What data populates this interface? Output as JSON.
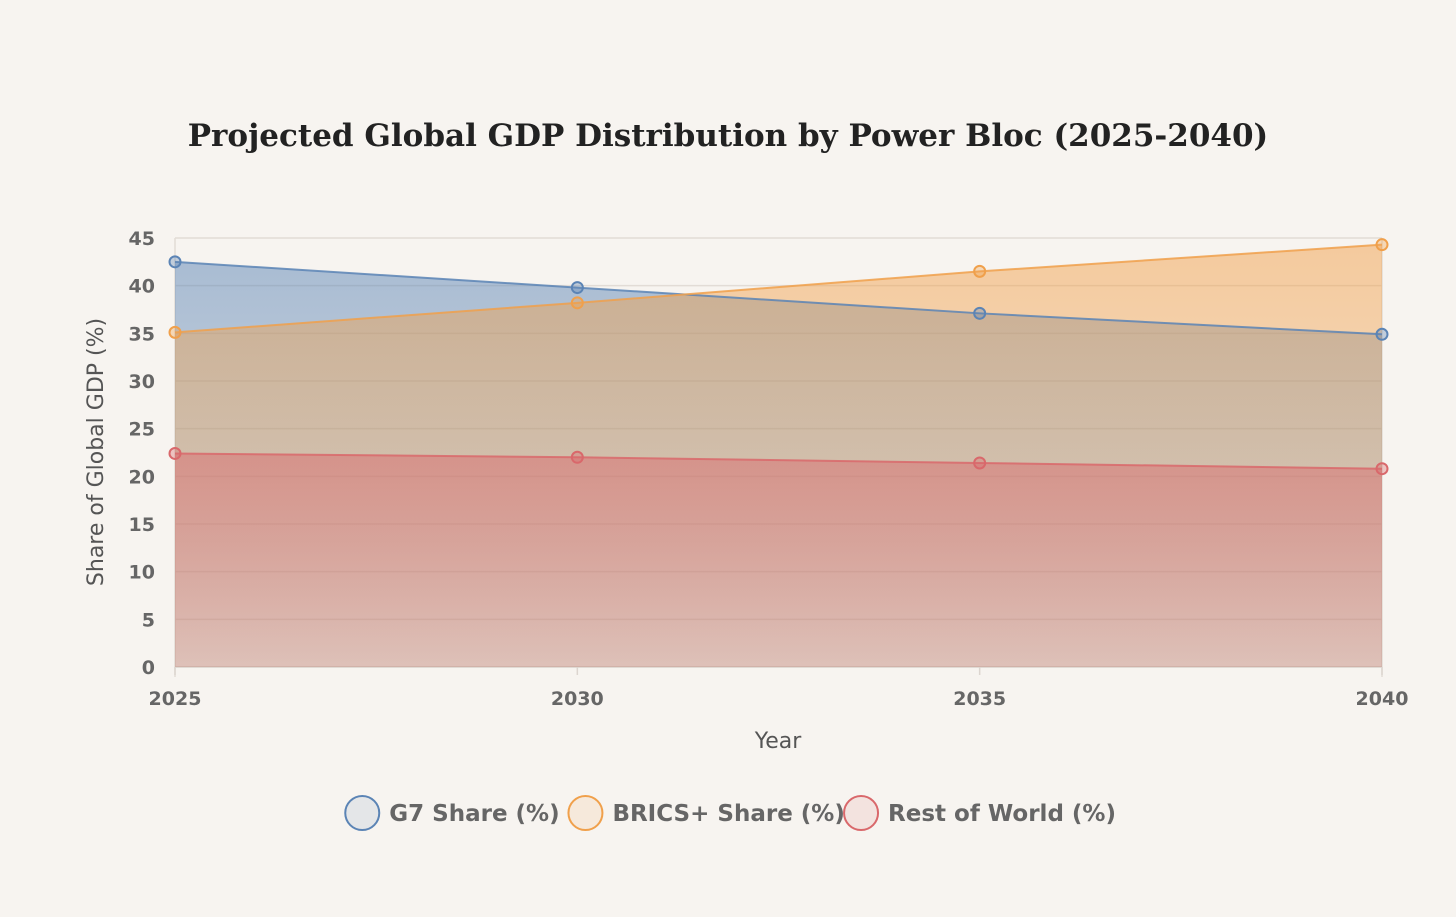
{
  "chart_data": {
    "type": "area",
    "title": "Projected Global GDP Distribution by Power Bloc (2025-2040)",
    "xlabel": "Year",
    "ylabel": "Share of Global GDP (%)",
    "categories": [
      "2025",
      "2030",
      "2035",
      "2040"
    ],
    "ylim": [
      0,
      45
    ],
    "yticks": [
      "0",
      "5",
      "10",
      "15",
      "20",
      "25",
      "30",
      "35",
      "40",
      "45"
    ],
    "grid": true,
    "legend_position": "bottom",
    "series": [
      {
        "name": "G7 Share (%)",
        "values": [
          42.5,
          39.8,
          37.1,
          34.9
        ],
        "color": "#5b84b5"
      },
      {
        "name": "BRICS+ Share (%)",
        "values": [
          35.1,
          38.2,
          41.5,
          44.3
        ],
        "color": "#f0a04b"
      },
      {
        "name": "Rest of World (%)",
        "values": [
          22.4,
          22.0,
          21.4,
          20.8
        ],
        "color": "#d9686b"
      }
    ]
  }
}
